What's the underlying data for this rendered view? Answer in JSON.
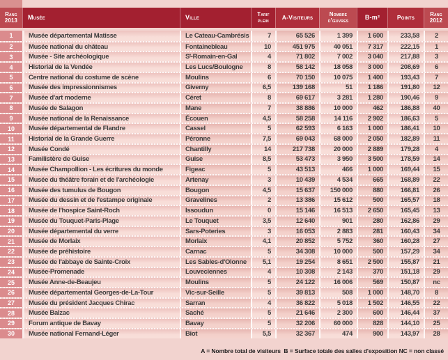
{
  "chart_data": {
    "type": "table",
    "columns": [
      "Rang 2013",
      "Musée",
      "Ville",
      "Tarif plein",
      "A-Visiteurs",
      "Nombre d'œuvres",
      "B-m²",
      "Points",
      "Rang 2012"
    ],
    "rows": [
      [
        "1",
        "Musée départemental Matisse",
        "Le Cateau-Cambrésis",
        "7",
        "65 526",
        "1 399",
        "1 600",
        "233,58",
        "2"
      ],
      [
        "2",
        "Musée national du château",
        "Fontainebleau",
        "10",
        "451 975",
        "40 051",
        "7 317",
        "222,15",
        "1"
      ],
      [
        "3",
        "Musée - Site archéologique",
        "Sᵗ-Romain-en-Gal",
        "4",
        "71 802",
        "7 002",
        "3 040",
        "217,88",
        "3"
      ],
      [
        "4",
        "Historial de la Vendée",
        "Les Lucs/Boulogne",
        "8",
        "58 142",
        "18 058",
        "3 000",
        "208,69",
        "6"
      ],
      [
        "5",
        "Centre national du costume de scène",
        "Moulins",
        "6",
        "70 150",
        "10 075",
        "1 400",
        "193,43",
        "7"
      ],
      [
        "6",
        "Musée des impressionnismes",
        "Giverny",
        "6,5",
        "139 168",
        "51",
        "1 186",
        "191,80",
        "12"
      ],
      [
        "7",
        "Musée d'art moderne",
        "Céret",
        "8",
        "69 617",
        "3 281",
        "1 280",
        "190,46",
        "9"
      ],
      [
        "8",
        "Musée de Salagon",
        "Mane",
        "7",
        "38 886",
        "10 000",
        "462",
        "186,88",
        "40"
      ],
      [
        "9",
        "Musée national de la Renaissance",
        "Écouen",
        "4,5",
        "58 258",
        "14 116",
        "2 902",
        "186,63",
        "5"
      ],
      [
        "10",
        "Musée départemental de Flandre",
        "Cassel",
        "5",
        "62 593",
        "6 163",
        "1 000",
        "186,41",
        "10"
      ],
      [
        "11",
        "Historial de la Grande Guerre",
        "Péronne",
        "7,5",
        "69 043",
        "68 000",
        "2 050",
        "182,89",
        "11"
      ],
      [
        "12",
        "Musée Condé",
        "Chantilly",
        "14",
        "217 738",
        "20 000",
        "2 889",
        "179,28",
        "4"
      ],
      [
        "13",
        "Familistère de Guise",
        "Guise",
        "8,5",
        "53 473",
        "3 950",
        "3 500",
        "178,59",
        "14"
      ],
      [
        "14",
        "Musée Champollion - Les écritures du monde",
        "Figeac",
        "5",
        "43 513",
        "466",
        "1 000",
        "169,44",
        "15"
      ],
      [
        "15",
        "Musée du théâtre forain et de l'archéologie",
        "Artenay",
        "3",
        "10 439",
        "4 534",
        "665",
        "168,89",
        "22"
      ],
      [
        "16",
        "Musée des tumulus de Bougon",
        "Bougon",
        "4,5",
        "15 637",
        "150 000",
        "880",
        "166,81",
        "26"
      ],
      [
        "17",
        "Musée du dessin et de l'estampe originale",
        "Gravelines",
        "2",
        "13 386",
        "15 612",
        "500",
        "165,57",
        "18"
      ],
      [
        "18",
        "Musée de l'hospice Saint-Roch",
        "Issoudun",
        "0",
        "15 146",
        "16 513",
        "2 650",
        "165,45",
        "13"
      ],
      [
        "19",
        "Musée du Touquet-Paris-Plage",
        "Le Touquet",
        "3,5",
        "12 640",
        "901",
        "280",
        "162,86",
        "29"
      ],
      [
        "20",
        "Musée départemental du verre",
        "Sars-Poteries",
        "3",
        "16 053",
        "2 883",
        "281",
        "160,43",
        "34"
      ],
      [
        "21",
        "Musée de Morlaix",
        "Morlaix",
        "4,1",
        "20 852",
        "5 752",
        "360",
        "160,28",
        "27"
      ],
      [
        "22",
        "Musée de préhistoire",
        "Carnac",
        "5",
        "34 308",
        "10 000",
        "500",
        "157,29",
        "34"
      ],
      [
        "23",
        "Musée de l'abbaye de Sainte-Croix",
        "Les Sables-d'Olonne",
        "5,1",
        "19 254",
        "8 651",
        "2 500",
        "155,87",
        "21"
      ],
      [
        "24",
        "Musée-Promenade",
        "Louveciennes",
        "4",
        "10 308",
        "2 143",
        "370",
        "151,18",
        "29"
      ],
      [
        "25",
        "Musée Anne-de-Beaujeu",
        "Moulins",
        "5",
        "24 122",
        "16 006",
        "569",
        "150,87",
        "nc"
      ],
      [
        "26",
        "Musée départemental Georges-de-La-Tour",
        "Vic-sur-Seille",
        "5",
        "39 813",
        "508",
        "1 000",
        "148,70",
        "8"
      ],
      [
        "27",
        "Musée du président Jacques Chirac",
        "Sarran",
        "4",
        "36 822",
        "5 018",
        "1 502",
        "146,55",
        "22"
      ],
      [
        "28",
        "Musée Balzac",
        "Saché",
        "5",
        "21 646",
        "2 300",
        "600",
        "146,44",
        "37"
      ],
      [
        "29",
        "Forum antique de Bavay",
        "Bavay",
        "5",
        "32 206",
        "60 000",
        "828",
        "144,10",
        "25"
      ],
      [
        "30",
        "Musée national Fernand-Léger",
        "Biot",
        "5,5",
        "32 367",
        "474",
        "900",
        "143,97",
        "28"
      ]
    ]
  },
  "header": {
    "rank2013_l1": "Rang",
    "rank2013_l2": "2013",
    "musee": "Musée",
    "ville": "Ville",
    "tarif_l1": "Tarif",
    "tarif_l2": "plein",
    "visiteurs": "A-Visiteurs",
    "oeuvres_l1": "Nombre",
    "oeuvres_l2": "d'œuvres",
    "bm2": "B-m²",
    "points": "Points",
    "rank2012_l1": "Rang",
    "rank2012_l2": "2012"
  },
  "footer": {
    "legend": "A = Nombre total de visiteurs  B = Surface totale des salles d'exposition NC = non classé"
  },
  "colors": {
    "page_bg": "#f2d3cf",
    "header_dark": "#a32030",
    "header_mid": "#af2e3a",
    "header_light": "#bc4a51",
    "rank_cell": "#db8b8d",
    "row_light": "#f8ddd8",
    "row_dark": "#f3d0ca",
    "text": "#3c3c3c"
  }
}
